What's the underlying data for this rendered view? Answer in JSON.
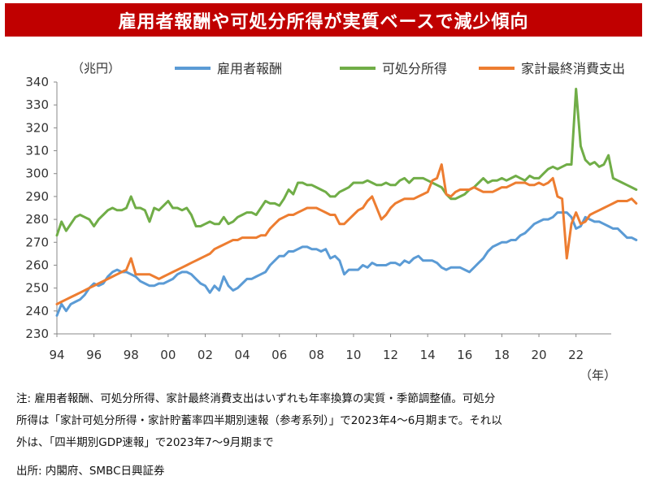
{
  "title": "雇用者報酬や可処分所得が実質ベースで減少傾向",
  "unit_label": "（兆円）",
  "x_unit_label": "（年）",
  "note_lines": [
    "注: 雇用者報酬、可処分所得、家計最終消費支出はいずれも年率換算の実質・季節調整値。可処分",
    "所得は「家計可処分所得・家計貯蓄率四半期別速報（参考系列）」で2023年4～6月期まで。それ以",
    "外は、「四半期別GDP速報」で2023年7～9月期まで"
  ],
  "source": "出所: 内閣府、SMBC日興証券",
  "chart_data": {
    "type": "line",
    "ylim": [
      230,
      340
    ],
    "yticks": [
      230,
      240,
      250,
      260,
      270,
      280,
      290,
      300,
      310,
      320,
      330,
      340
    ],
    "xlim": [
      1994,
      2023.9
    ],
    "xticks": [
      1994,
      1996,
      1998,
      2000,
      2002,
      2004,
      2006,
      2008,
      2010,
      2012,
      2014,
      2016,
      2018,
      2020,
      2022
    ],
    "xtick_labels": [
      "94",
      "96",
      "98",
      "00",
      "02",
      "04",
      "06",
      "08",
      "10",
      "12",
      "14",
      "16",
      "18",
      "20",
      "22"
    ],
    "grid": false,
    "legend_position": "top",
    "series": [
      {
        "name": "雇用者報酬",
        "color": "#5b9bd5",
        "start": 1994,
        "values": [
          238,
          243,
          240,
          243,
          244,
          245,
          247,
          250,
          252,
          251,
          252,
          255,
          257,
          258,
          257,
          257,
          256,
          255,
          253,
          252,
          251,
          251,
          252,
          252,
          253,
          254,
          256,
          257,
          257,
          256,
          254,
          252,
          251,
          248,
          251,
          249,
          255,
          251,
          249,
          250,
          252,
          254,
          254,
          255,
          256,
          257,
          260,
          262,
          264,
          264,
          266,
          266,
          267,
          268,
          268,
          267,
          267,
          266,
          267,
          263,
          264,
          262,
          256,
          258,
          258,
          258,
          260,
          259,
          261,
          260,
          260,
          260,
          261,
          261,
          260,
          262,
          261,
          263,
          264,
          262,
          262,
          262,
          261,
          259,
          258,
          259,
          259,
          259,
          258,
          257,
          259,
          261,
          263,
          266,
          268,
          269,
          270,
          270,
          271,
          271,
          273,
          274,
          276,
          278,
          279,
          280,
          280,
          281,
          283,
          283,
          283,
          281,
          276,
          277,
          281,
          280,
          279,
          279,
          278,
          277,
          276,
          276,
          274,
          272,
          272,
          271
        ]
      },
      {
        "name": "可処分所得",
        "color": "#70ad47",
        "start": 1994,
        "values": [
          273,
          279,
          275,
          278,
          281,
          282,
          281,
          280,
          277,
          280,
          282,
          284,
          285,
          284,
          284,
          285,
          290,
          285,
          285,
          284,
          279,
          285,
          284,
          286,
          288,
          285,
          285,
          284,
          285,
          282,
          277,
          277,
          278,
          279,
          278,
          278,
          281,
          278,
          279,
          281,
          282,
          283,
          283,
          282,
          285,
          288,
          287,
          287,
          286,
          289,
          293,
          291,
          296,
          296,
          295,
          295,
          294,
          293,
          292,
          290,
          290,
          292,
          293,
          294,
          296,
          296,
          296,
          297,
          296,
          295,
          295,
          296,
          295,
          295,
          297,
          298,
          296,
          298,
          298,
          298,
          297,
          296,
          295,
          294,
          291,
          289,
          289,
          290,
          291,
          293,
          294,
          296,
          298,
          296,
          297,
          297,
          298,
          297,
          298,
          299,
          298,
          297,
          299,
          298,
          298,
          300,
          302,
          303,
          302,
          303,
          304,
          304,
          337,
          312,
          306,
          304,
          305,
          303,
          304,
          308,
          298,
          297,
          296,
          295,
          294,
          293
        ]
      },
      {
        "name": "家計最終消費支出",
        "color": "#ed7d31",
        "start": 1994,
        "values": [
          243,
          244,
          245,
          246,
          247,
          248,
          249,
          250,
          251,
          252,
          253,
          254,
          255,
          256,
          257,
          258,
          263,
          256,
          256,
          256,
          256,
          255,
          254,
          255,
          256,
          257,
          258,
          259,
          260,
          261,
          262,
          263,
          264,
          265,
          267,
          268,
          269,
          270,
          271,
          271,
          272,
          272,
          272,
          272,
          273,
          273,
          276,
          278,
          280,
          281,
          282,
          282,
          283,
          284,
          285,
          285,
          285,
          284,
          283,
          282,
          282,
          278,
          278,
          280,
          282,
          284,
          285,
          288,
          290,
          285,
          280,
          282,
          285,
          287,
          288,
          289,
          289,
          289,
          290,
          291,
          292,
          297,
          298,
          304,
          291,
          290,
          292,
          293,
          293,
          293,
          294,
          293,
          292,
          292,
          292,
          293,
          294,
          294,
          295,
          296,
          296,
          296,
          295,
          295,
          296,
          295,
          296,
          298,
          290,
          289,
          263,
          278,
          283,
          278,
          279,
          282,
          283,
          284,
          285,
          286,
          287,
          288,
          288,
          288,
          289,
          287
        ]
      }
    ]
  }
}
